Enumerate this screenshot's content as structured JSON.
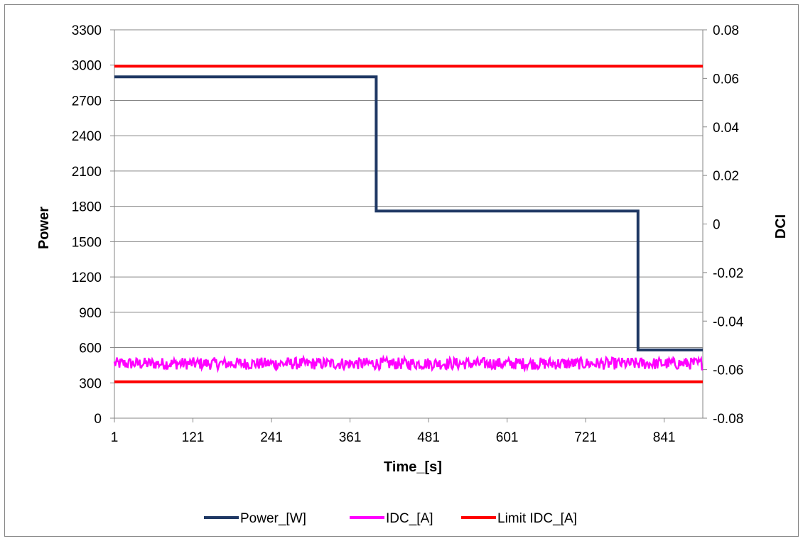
{
  "chart_data": {
    "type": "line",
    "xlabel": "Time_[s]",
    "ylabel": "Power",
    "y2label": "DCI",
    "x_ticks": [
      "1",
      "121",
      "241",
      "361",
      "481",
      "601",
      "721",
      "841"
    ],
    "x_range": [
      1,
      900
    ],
    "y_ticks": [
      "0",
      "300",
      "600",
      "900",
      "1200",
      "1500",
      "1800",
      "2100",
      "2400",
      "2700",
      "3000",
      "3300"
    ],
    "ylim": [
      0,
      3300
    ],
    "y2_ticks": [
      "-0.08",
      "-0.06",
      "-0.04",
      "-0.02",
      "0",
      "0.02",
      "0.04",
      "0.06",
      "0.08"
    ],
    "y2lim": [
      -0.08,
      0.08
    ],
    "grid": "horizontal",
    "legend_position": "bottom",
    "series": [
      {
        "name": "Power_[W]",
        "axis": "left",
        "color": "#1f3864",
        "segments": [
          {
            "x_start": 1,
            "x_end": 401,
            "value": 2900
          },
          {
            "x_start": 401,
            "x_end": 801,
            "value": 1760
          },
          {
            "x_start": 801,
            "x_end": 900,
            "value": 580
          }
        ]
      },
      {
        "name": "IDC_[A]",
        "axis": "right",
        "color": "#ff00ff",
        "mean": -0.0575,
        "noise_amplitude": 0.0025,
        "x_range": [
          1,
          900
        ]
      },
      {
        "name": "Limit IDC_[A]",
        "axis": "right",
        "color": "#ff0000",
        "lines": [
          0.065,
          -0.065
        ]
      }
    ]
  }
}
